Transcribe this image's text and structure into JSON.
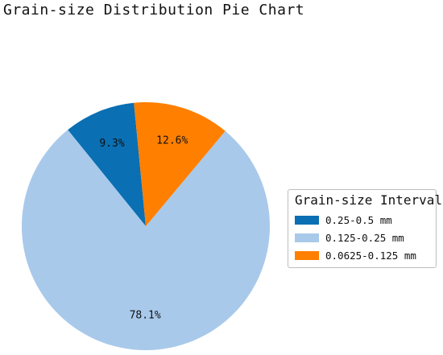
{
  "colors": {
    "series_1": "#0a6fb3",
    "series_2": "#a8c9ea",
    "series_3": "#ff7f00"
  },
  "chart_data": {
    "type": "pie",
    "title": "Grain-size Distribution Pie Chart",
    "legend": {
      "title": "Grain-size Interval",
      "placement": "right"
    },
    "slices": [
      {
        "label": "0.25-0.5 mm",
        "value": 9.3,
        "display": "9.3%",
        "color": "#0a6fb3"
      },
      {
        "label": "0.125-0.25 mm",
        "value": 78.1,
        "display": "78.1%",
        "color": "#a8c9ea"
      },
      {
        "label": "0.0625-0.125 mm",
        "value": 12.6,
        "display": "12.6%",
        "color": "#ff7f00"
      }
    ]
  }
}
